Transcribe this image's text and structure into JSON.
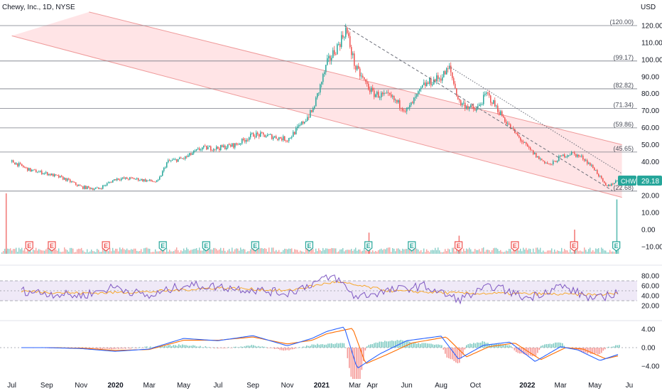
{
  "header": {
    "title": "Chewy, Inc., 1D, NYSE",
    "currency": "USD",
    "ticker_badge": "CHWY",
    "last_price": "29.18"
  },
  "colors": {
    "up": "#26a69a",
    "down": "#ef5350",
    "channel_fill": "#ffcdd2",
    "channel_line": "#ef9a9a",
    "level_line": "#787b86",
    "rsi_line": "#7e57c2",
    "rsi_ma": "#f7a21b",
    "rsi_band": "#ede7f6",
    "macd_line": "#2962ff",
    "signal_line": "#ff6d00",
    "badge": "#26a69a"
  },
  "chart_data": [
    {
      "type": "line",
      "name": "price-pane",
      "xlabel": "",
      "ylabel": "",
      "x_dates": [
        "2019-07",
        "2019-09",
        "2019-11",
        "2020-01",
        "2020-03",
        "2020-05",
        "2020-07",
        "2020-09",
        "2020-11",
        "2021-01",
        "2021-03",
        "2021-04",
        "2021-06",
        "2021-08",
        "2021-10",
        "2022-01",
        "2022-03",
        "2022-05",
        "2022-07"
      ],
      "x_tick_labels": [
        "Jul",
        "Sep",
        "Nov",
        "2020",
        "Mar",
        "May",
        "Jul",
        "Sep",
        "Nov",
        "2021",
        "Mar",
        "Apr",
        "Jun",
        "Aug",
        "Oct",
        "2022",
        "Mar",
        "May",
        "Ju"
      ],
      "y_ticks": [
        120,
        110,
        100,
        90,
        80,
        70,
        60,
        50,
        40,
        30,
        20,
        10,
        0,
        -10
      ],
      "y_tick_labels": [
        "120.00",
        "110.00",
        "100.00",
        "90.00",
        "80.00",
        "70.00",
        "60.00",
        "50.00",
        "40.00",
        "30.00",
        "20.00",
        "10.00",
        "0.00",
        "−10.00"
      ],
      "ylim": [
        -12,
        126
      ],
      "horizontal_levels": [
        {
          "value": 120.0,
          "label": "(120.00)"
        },
        {
          "value": 99.17,
          "label": "(99.17)"
        },
        {
          "value": 82.82,
          "label": "(82.82)"
        },
        {
          "value": 71.34,
          "label": "(71.34)"
        },
        {
          "value": 59.86,
          "label": "(59.86)"
        },
        {
          "value": 45.65,
          "label": "(45.65)"
        },
        {
          "value": 22.68,
          "label": "(22.68)"
        }
      ],
      "series": [
        {
          "type": "close",
          "x": [
            "2019-07-01",
            "2019-08-01",
            "2019-09-01",
            "2019-10-01",
            "2019-11-01",
            "2019-12-01",
            "2020-01-01",
            "2020-02-01",
            "2020-03-15",
            "2020-04-01",
            "2020-05-01",
            "2020-06-01",
            "2020-07-01",
            "2020-08-01",
            "2020-09-01",
            "2020-10-01",
            "2020-11-01",
            "2020-11-20",
            "2020-12-15",
            "2021-01-10",
            "2021-02-01",
            "2021-02-12",
            "2021-03-01",
            "2021-04-01",
            "2021-05-01",
            "2021-06-01",
            "2021-07-01",
            "2021-08-01",
            "2021-08-15",
            "2021-09-01",
            "2021-10-01",
            "2021-10-20",
            "2021-11-10",
            "2021-12-01",
            "2022-01-01",
            "2022-01-20",
            "2022-02-10",
            "2022-03-01",
            "2022-03-20",
            "2022-04-10",
            "2022-05-01",
            "2022-05-20",
            "2022-06-10"
          ],
          "y": [
            40,
            35,
            33,
            30,
            25,
            24,
            30,
            30,
            28,
            40,
            42,
            48,
            48,
            50,
            56,
            55,
            53,
            60,
            70,
            98,
            110,
            118,
            95,
            80,
            78,
            70,
            85,
            90,
            95,
            75,
            70,
            80,
            70,
            60,
            48,
            42,
            38,
            43,
            45,
            42,
            35,
            25,
            29.18
          ]
        }
      ],
      "channel": {
        "upper": [
          {
            "x": "2019-11-15",
            "y": 128
          },
          {
            "x": "2022-06-18",
            "y": 50
          }
        ],
        "lower": [
          {
            "x": "2019-07-01",
            "y": 114
          },
          {
            "x": "2022-06-18",
            "y": 19
          }
        ]
      },
      "trendlines": [
        {
          "style": "dashed",
          "from": {
            "x": "2021-02-10",
            "y": 120
          },
          "to": {
            "x": "2022-06-01",
            "y": 23
          }
        },
        {
          "style": "dotted",
          "from": {
            "x": "2021-08-15",
            "y": 96
          },
          "to": {
            "x": "2022-06-18",
            "y": 33
          }
        }
      ],
      "earnings_markers": [
        {
          "x": "2019-08-01",
          "label": "E",
          "color": "down"
        },
        {
          "x": "2019-09-10",
          "label": "E",
          "color": "down"
        },
        {
          "x": "2019-12-15",
          "label": "E",
          "color": "down"
        },
        {
          "x": "2020-03-25",
          "label": "E",
          "color": "up"
        },
        {
          "x": "2020-06-10",
          "label": "E",
          "color": "up"
        },
        {
          "x": "2020-09-05",
          "label": "E",
          "color": "up"
        },
        {
          "x": "2020-12-10",
          "label": "E",
          "color": "up"
        },
        {
          "x": "2021-03-25",
          "label": "E",
          "color": "up"
        },
        {
          "x": "2021-06-10",
          "label": "E",
          "color": "up"
        },
        {
          "x": "2021-09-01",
          "label": "E",
          "color": "down"
        },
        {
          "x": "2021-12-10",
          "label": "E",
          "color": "down"
        },
        {
          "x": "2022-03-25",
          "label": "E",
          "color": "down"
        },
        {
          "x": "2022-06-08",
          "label": "E",
          "color": "up"
        }
      ],
      "volume_spikes": [
        {
          "x": "2019-06-20",
          "rel": 1.0
        },
        {
          "x": "2021-03-25",
          "rel": 0.35
        },
        {
          "x": "2021-09-01",
          "rel": 0.3
        },
        {
          "x": "2022-03-25",
          "rel": 0.4
        },
        {
          "x": "2022-06-08",
          "rel": 0.9
        }
      ]
    },
    {
      "type": "line",
      "name": "rsi-pane",
      "y_ticks": [
        80,
        60,
        40,
        20
      ],
      "y_tick_labels": [
        "80.00",
        "60.00",
        "40.00",
        "20.00"
      ],
      "ylim": [
        14,
        86
      ],
      "band": [
        30,
        70
      ],
      "mid": 50,
      "series": [
        {
          "kind": "rsi",
          "x": [
            "2019-07-01",
            "2019-09-01",
            "2019-11-01",
            "2020-01-01",
            "2020-03-01",
            "2020-05-01",
            "2020-07-01",
            "2020-09-01",
            "2020-11-01",
            "2021-01-01",
            "2021-01-25",
            "2021-03-01",
            "2021-05-01",
            "2021-07-01",
            "2021-09-01",
            "2021-11-01",
            "2022-01-01",
            "2022-03-01",
            "2022-05-01",
            "2022-06-18"
          ],
          "y": [
            52,
            45,
            40,
            58,
            38,
            62,
            58,
            52,
            45,
            72,
            78,
            38,
            50,
            60,
            32,
            60,
            35,
            60,
            32,
            50
          ]
        },
        {
          "kind": "rsi-ma",
          "x": [
            "2019-07-01",
            "2019-11-01",
            "2020-03-01",
            "2020-07-01",
            "2020-11-01",
            "2021-01-25",
            "2021-05-01",
            "2021-09-01",
            "2022-01-01",
            "2022-05-01",
            "2022-06-18"
          ],
          "y": [
            50,
            45,
            48,
            56,
            50,
            68,
            50,
            45,
            44,
            42,
            45
          ]
        }
      ]
    },
    {
      "type": "line",
      "name": "macd-pane",
      "y_ticks": [
        4,
        0,
        -4
      ],
      "y_tick_labels": [
        "4.00",
        "0.00",
        "−4.00"
      ],
      "ylim": [
        -5.3,
        4.2
      ],
      "series": [
        {
          "kind": "macd",
          "x": [
            "2019-09-01",
            "2019-11-01",
            "2020-01-01",
            "2020-03-01",
            "2020-05-01",
            "2020-07-01",
            "2020-09-01",
            "2020-11-01",
            "2020-12-15",
            "2021-01-10",
            "2021-02-10",
            "2021-03-05",
            "2021-04-15",
            "2021-06-01",
            "2021-08-01",
            "2021-09-01",
            "2021-10-15",
            "2021-12-01",
            "2022-01-15",
            "2022-03-01",
            "2022-04-01",
            "2022-05-10",
            "2022-06-18"
          ],
          "y": [
            0,
            -0.2,
            -0.8,
            -0.3,
            2.0,
            1.5,
            2.6,
            0.4,
            2.0,
            3.5,
            4.5,
            -4.5,
            -1.3,
            1.5,
            2.5,
            -2.5,
            0.5,
            1.2,
            -3.0,
            0.2,
            -0.5,
            -2.8,
            -1.2
          ]
        },
        {
          "kind": "signal",
          "x": [
            "2019-09-01",
            "2019-11-01",
            "2020-01-01",
            "2020-03-01",
            "2020-05-01",
            "2020-07-01",
            "2020-09-01",
            "2020-11-01",
            "2020-12-15",
            "2021-01-10",
            "2021-02-25",
            "2021-03-20",
            "2021-04-25",
            "2021-06-10",
            "2021-08-10",
            "2021-09-15",
            "2021-10-25",
            "2021-12-10",
            "2022-01-25",
            "2022-03-10",
            "2022-04-10",
            "2022-05-20",
            "2022-06-18"
          ],
          "y": [
            0,
            -0.1,
            -0.6,
            -0.4,
            1.6,
            1.6,
            2.3,
            0.8,
            1.6,
            3.0,
            4.2,
            -3.5,
            -1.6,
            1.0,
            2.3,
            -2.0,
            0.2,
            1.0,
            -2.6,
            0.0,
            -0.3,
            -2.4,
            -1.6
          ]
        }
      ]
    }
  ]
}
